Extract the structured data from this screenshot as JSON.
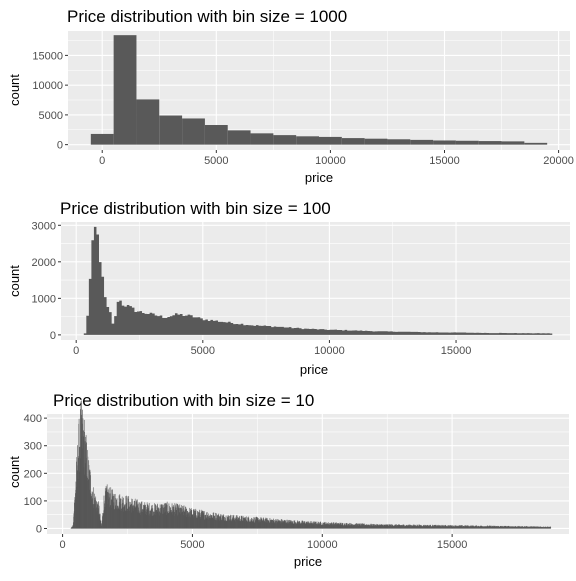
{
  "chart_data": [
    {
      "type": "bar",
      "title": "Price distribution with bin size = 1000",
      "xlabel": "price",
      "ylabel": "count",
      "grid": true,
      "bin_width": 1000,
      "xlim": [
        -1500,
        20500
      ],
      "ylim": [
        -900,
        19100
      ],
      "x_ticks": [
        0,
        5000,
        10000,
        15000,
        20000
      ],
      "y_ticks": [
        0,
        5000,
        10000,
        15000
      ],
      "bins": [
        {
          "x": 0,
          "count": 1800
        },
        {
          "x": 1000,
          "count": 18400
        },
        {
          "x": 2000,
          "count": 7600
        },
        {
          "x": 3000,
          "count": 4900
        },
        {
          "x": 4000,
          "count": 4400
        },
        {
          "x": 5000,
          "count": 3300
        },
        {
          "x": 6000,
          "count": 2400
        },
        {
          "x": 7000,
          "count": 1900
        },
        {
          "x": 8000,
          "count": 1600
        },
        {
          "x": 9000,
          "count": 1400
        },
        {
          "x": 10000,
          "count": 1300
        },
        {
          "x": 11000,
          "count": 1100
        },
        {
          "x": 12000,
          "count": 1000
        },
        {
          "x": 13000,
          "count": 900
        },
        {
          "x": 14000,
          "count": 800
        },
        {
          "x": 15000,
          "count": 700
        },
        {
          "x": 16000,
          "count": 650
        },
        {
          "x": 17000,
          "count": 600
        },
        {
          "x": 18000,
          "count": 550
        },
        {
          "x": 19000,
          "count": 300
        }
      ]
    },
    {
      "type": "bar",
      "title": "Price distribution with bin size = 100",
      "xlabel": "price",
      "ylabel": "count",
      "grid": true,
      "bin_width": 100,
      "xlim": [
        -600,
        19500
      ],
      "ylim": [
        -140,
        3090
      ],
      "x_ticks": [
        0,
        5000,
        10000,
        15000
      ],
      "y_ticks": [
        0,
        1000,
        2000,
        3000
      ],
      "points": [
        [
          300,
          0
        ],
        [
          400,
          80
        ],
        [
          500,
          1000
        ],
        [
          600,
          2000
        ],
        [
          700,
          2800
        ],
        [
          800,
          2950
        ],
        [
          900,
          2400
        ],
        [
          1000,
          1800
        ],
        [
          1100,
          1200
        ],
        [
          1200,
          800
        ],
        [
          1300,
          650
        ],
        [
          1400,
          550
        ],
        [
          1500,
          80
        ],
        [
          1600,
          900
        ],
        [
          1700,
          1000
        ],
        [
          1800,
          850
        ],
        [
          2000,
          800
        ],
        [
          2400,
          650
        ],
        [
          3000,
          560
        ],
        [
          3500,
          480
        ],
        [
          4000,
          560
        ],
        [
          4500,
          520
        ],
        [
          5000,
          430
        ],
        [
          6000,
          340
        ],
        [
          7000,
          260
        ],
        [
          8000,
          220
        ],
        [
          9000,
          170
        ],
        [
          10000,
          140
        ],
        [
          11000,
          120
        ],
        [
          12000,
          95
        ],
        [
          13000,
          85
        ],
        [
          14000,
          70
        ],
        [
          15000,
          65
        ],
        [
          16000,
          55
        ],
        [
          17000,
          50
        ],
        [
          18000,
          45
        ],
        [
          18800,
          40
        ]
      ]
    },
    {
      "type": "bar",
      "title": "Price distribution with bin size = 10",
      "xlabel": "price",
      "ylabel": "count",
      "grid": true,
      "bin_width": 10,
      "xlim": [
        -600,
        19500
      ],
      "ylim": [
        -20,
        415
      ],
      "x_ticks": [
        0,
        5000,
        10000,
        15000
      ],
      "y_ticks": [
        0,
        100,
        200,
        300,
        400
      ],
      "points": [
        [
          320,
          0
        ],
        [
          400,
          10
        ],
        [
          500,
          140
        ],
        [
          600,
          270
        ],
        [
          700,
          350
        ],
        [
          800,
          330
        ],
        [
          900,
          260
        ],
        [
          1000,
          200
        ],
        [
          1100,
          150
        ],
        [
          1200,
          110
        ],
        [
          1300,
          90
        ],
        [
          1400,
          70
        ],
        [
          1500,
          5
        ],
        [
          1600,
          100
        ],
        [
          1700,
          120
        ],
        [
          1800,
          115
        ],
        [
          2000,
          100
        ],
        [
          2500,
          90
        ],
        [
          3000,
          75
        ],
        [
          3500,
          68
        ],
        [
          4000,
          72
        ],
        [
          4500,
          66
        ],
        [
          5000,
          55
        ],
        [
          6000,
          42
        ],
        [
          7000,
          34
        ],
        [
          8000,
          28
        ],
        [
          9000,
          22
        ],
        [
          10000,
          18
        ],
        [
          11000,
          15
        ],
        [
          12000,
          12
        ],
        [
          13000,
          11
        ],
        [
          14000,
          10
        ],
        [
          15000,
          9
        ],
        [
          16000,
          8
        ],
        [
          17000,
          7
        ],
        [
          18000,
          6
        ],
        [
          18800,
          5
        ]
      ]
    }
  ]
}
